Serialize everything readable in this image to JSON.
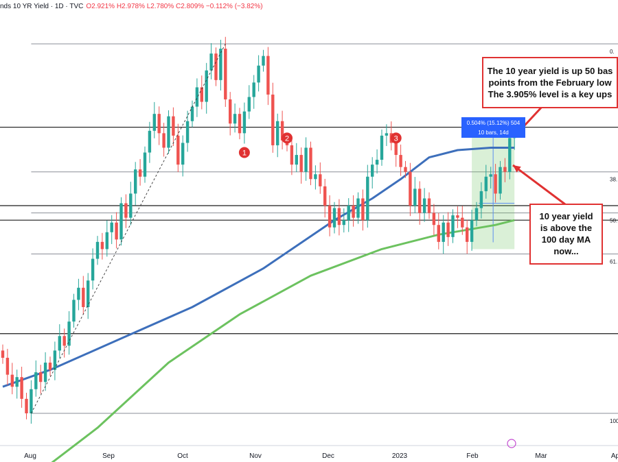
{
  "header": {
    "title": "nds 10 YR Yield · 1D · TVC",
    "ohlc": "O2.921% H2.978% L2.780% C2.809% −0.112% (−3.82%)"
  },
  "annotations": {
    "top_box": [
      "The 10 year yield is up 50 bas",
      "points from the February low",
      "The 3.905% level is a key ups"
    ],
    "ma_box": [
      "10 year yield",
      "is above the",
      "100 day MA",
      "now..."
    ],
    "measure_line1": "0.504% (15.12%) 504",
    "measure_line2": "10 bars, 14d",
    "markers": [
      "1",
      "2",
      "3"
    ]
  },
  "colors": {
    "up": "#26a69a",
    "down": "#ef5350",
    "ma100": "#3d6fbb",
    "ma200": "#6cc25f",
    "annotation": "#e03131",
    "measure": "#2962ff"
  },
  "chart_data": {
    "type": "candlestick",
    "title": "10 YR Yield",
    "xlabel": "",
    "ylabel": "",
    "x_ticks": [
      "Aug",
      "Sep",
      "Oct",
      "Nov",
      "Dec",
      "2023",
      "Feb",
      "Mar",
      "Ap"
    ],
    "y_range": [
      2.45,
      4.33
    ],
    "fib_levels": [
      {
        "label": "0.",
        "value": 4.25
      },
      {
        "label": "38.",
        "value": 3.72
      },
      {
        "label": "50.",
        "value": 3.55
      },
      {
        "label": "61.",
        "value": 3.38
      },
      {
        "label": "100.",
        "value": 2.72
      }
    ],
    "horizontal_levels": [
      3.905,
      3.58,
      3.52,
      3.05
    ],
    "series": [
      {
        "name": "10 YR Yield",
        "kind": "candlestick",
        "close": [
          2.95,
          2.88,
          2.83,
          2.87,
          2.78,
          2.72,
          2.82,
          2.89,
          2.85,
          2.93,
          2.9,
          2.98,
          3.04,
          3.0,
          3.1,
          3.19,
          3.24,
          3.16,
          3.27,
          3.36,
          3.43,
          3.4,
          3.47,
          3.51,
          3.44,
          3.59,
          3.53,
          3.63,
          3.73,
          3.7,
          3.8,
          3.89,
          3.96,
          3.88,
          3.82,
          3.95,
          3.87,
          3.75,
          3.84,
          3.93,
          3.99,
          4.07,
          4.01,
          4.14,
          4.21,
          4.1,
          4.23,
          4.02,
          3.92,
          3.96,
          3.88,
          3.97,
          4.03,
          4.09,
          4.16,
          4.2,
          4.04,
          3.83,
          3.93,
          3.85,
          3.83,
          3.75,
          3.79,
          3.72,
          3.82,
          3.69,
          3.71,
          3.66,
          3.58,
          3.49,
          3.57,
          3.5,
          3.52,
          3.58,
          3.53,
          3.61,
          3.52,
          3.7,
          3.75,
          3.77,
          3.87,
          3.88,
          3.84,
          3.79,
          3.74,
          3.72,
          3.58,
          3.65,
          3.55,
          3.61,
          3.55,
          3.5,
          3.43,
          3.51,
          3.45,
          3.54,
          3.53,
          3.49,
          3.43,
          3.52,
          3.57,
          3.64,
          3.7,
          3.71,
          3.63,
          3.74,
          3.72,
          3.86,
          3.89
        ]
      },
      {
        "name": "100 day MA",
        "kind": "line",
        "x_index": [
          0,
          10,
          25,
          40,
          55,
          70,
          78,
          84,
          90,
          96,
          103,
          108
        ],
        "values": [
          2.83,
          2.9,
          3.03,
          3.16,
          3.32,
          3.52,
          3.61,
          3.69,
          3.78,
          3.81,
          3.82,
          3.82
        ]
      },
      {
        "name": "200 day MA",
        "kind": "line",
        "x_index": [
          6,
          20,
          35,
          50,
          65,
          80,
          92,
          98,
          104,
          108
        ],
        "values": [
          2.45,
          2.66,
          2.93,
          3.13,
          3.29,
          3.4,
          3.46,
          3.48,
          3.5,
          3.52
        ]
      }
    ]
  }
}
